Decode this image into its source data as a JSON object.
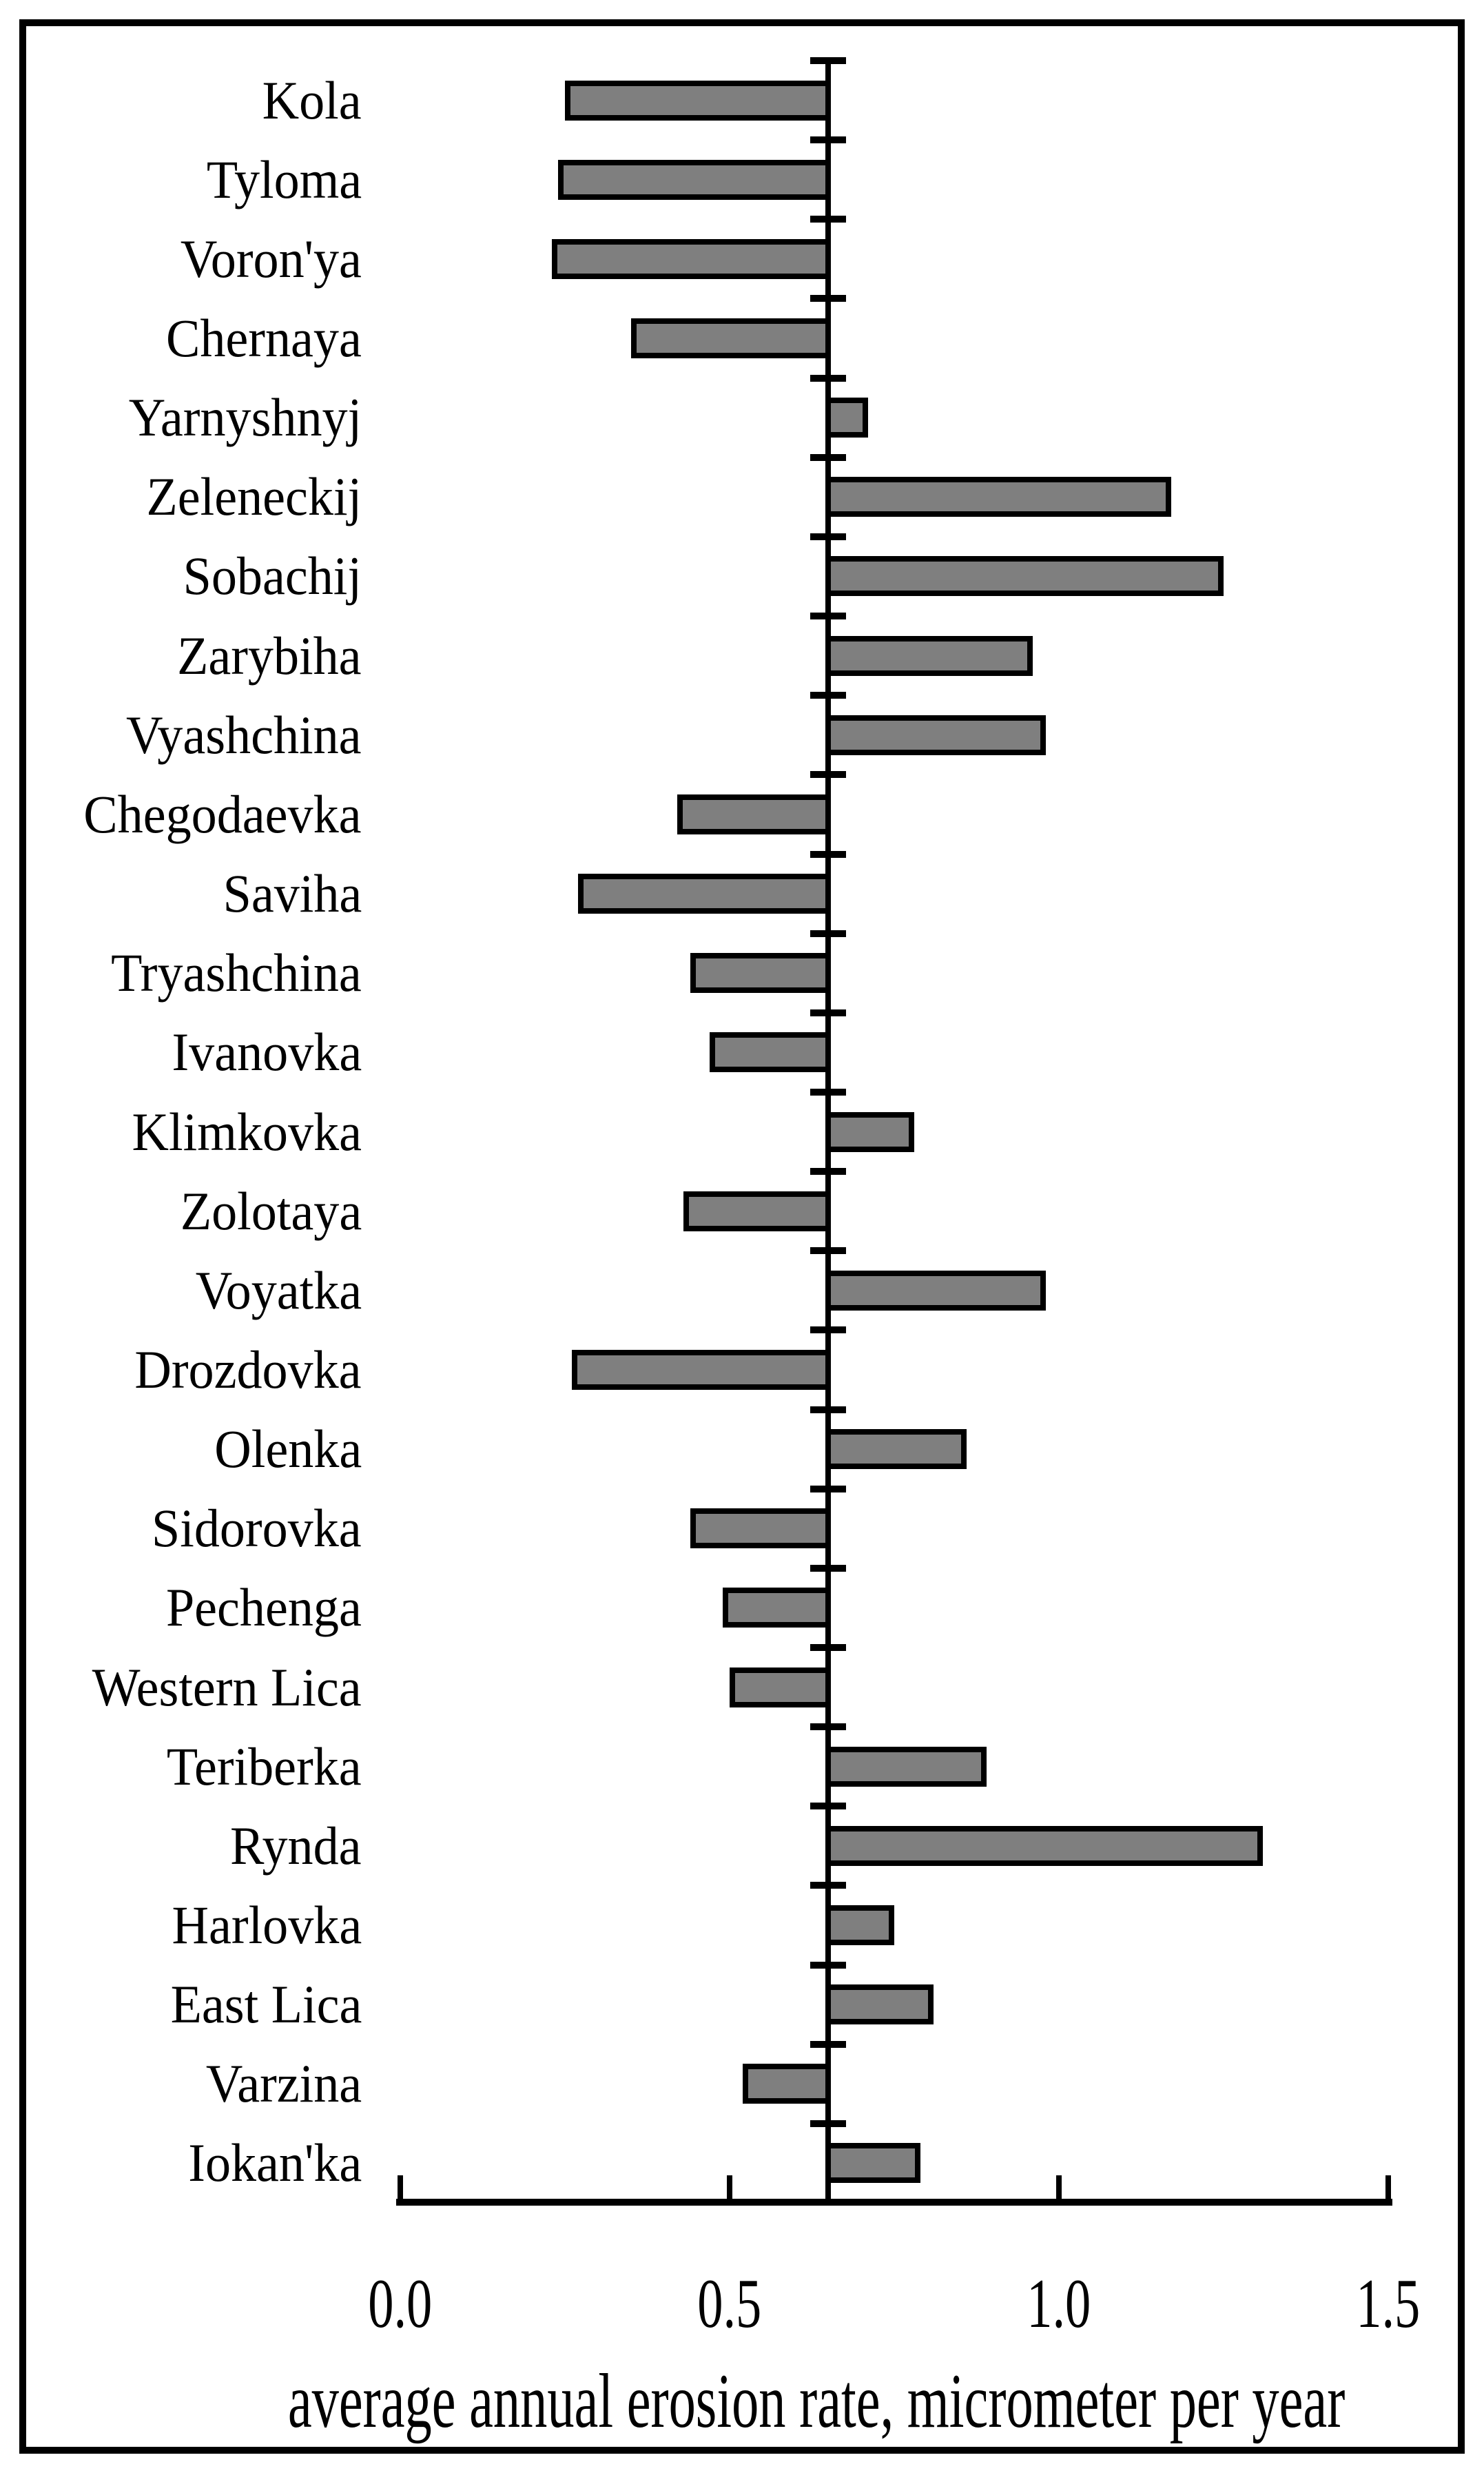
{
  "chart_data": {
    "type": "bar",
    "orientation": "horizontal",
    "title": "",
    "xlabel": "average annual erosion rate, micrometer per year",
    "ylabel": "",
    "xlim": [
      0.0,
      1.5
    ],
    "x_tick_values": [
      0.0,
      0.5,
      1.0,
      1.5
    ],
    "x_tick_labels": [
      "0.0",
      "0.5",
      "1.0",
      "1.5"
    ],
    "baseline": 0.65,
    "grid": false,
    "legend": false,
    "bar_fill_color": "#7f7f7f",
    "bar_border_color": "#000000",
    "axis_color": "#000000",
    "categories": [
      "Kola",
      "Tyloma",
      "Voron'ya",
      "Chernaya",
      "Yarnyshnyj",
      "Zeleneckij",
      "Sobachij",
      "Zarybiha",
      "Vyashchina",
      "Chegodaevka",
      "Saviha",
      "Tryashchina",
      "Ivanovka",
      "Klimkovka",
      "Zolotaya",
      "Voyatka",
      "Drozdovka",
      "Olenka",
      "Sidorovka",
      "Pechenga",
      "Western Lica",
      "Teriberka",
      "Rynda",
      "Harlovka",
      "East Lica",
      "Varzina",
      "Iokan'ka"
    ],
    "values": [
      0.25,
      0.24,
      0.23,
      0.35,
      0.71,
      1.17,
      1.25,
      0.96,
      0.98,
      0.42,
      0.27,
      0.44,
      0.47,
      0.78,
      0.43,
      0.98,
      0.26,
      0.86,
      0.44,
      0.49,
      0.5,
      0.89,
      1.31,
      0.75,
      0.81,
      0.52,
      0.79
    ],
    "note": "bars are drawn starting from the vertical baseline at 0.65; values below 0.65 extend left, values above extend right"
  }
}
